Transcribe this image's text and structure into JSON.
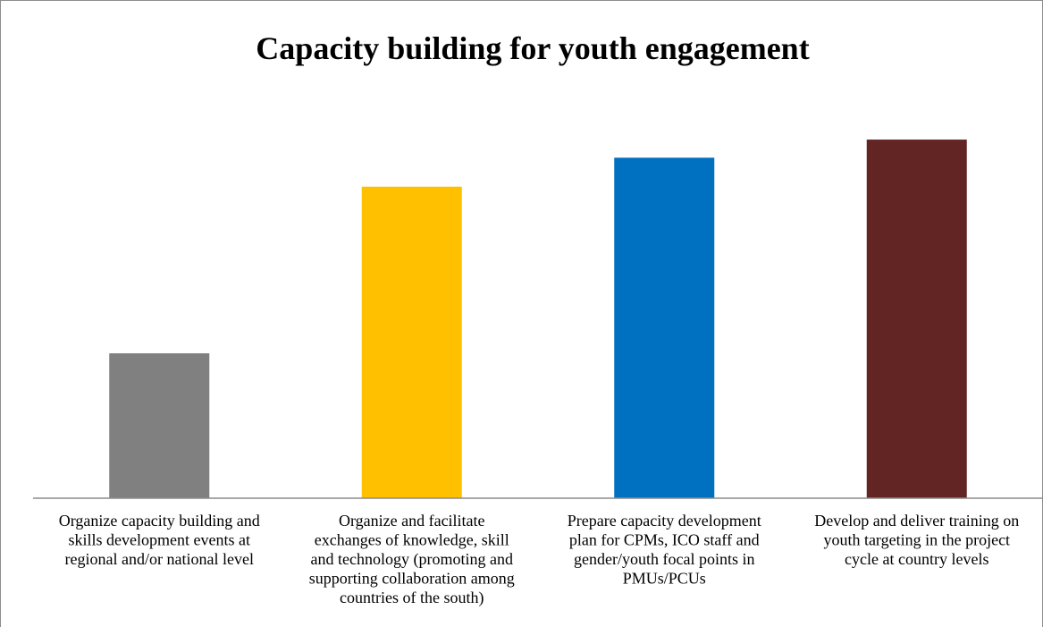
{
  "chart_data": {
    "type": "bar",
    "title": "Capacity building for youth engagement",
    "xlabel": "",
    "ylabel": "",
    "ylim": [
      0,
      100
    ],
    "grid": false,
    "legend": "none",
    "categories": [
      [
        "Organize capacity building and",
        "skills development events at",
        "regional and/or national level"
      ],
      [
        "Organize and facilitate",
        "exchanges of knowledge, skill",
        "and technology (promoting and",
        "supporting collaboration among",
        "countries of the south)"
      ],
      [
        "Prepare capacity development",
        "plan for CPMs, ICO staff and",
        "gender/youth focal points in",
        "PMUs/PCUs"
      ],
      [
        "Develop and deliver training on",
        "youth targeting in the project",
        "cycle at country levels"
      ]
    ],
    "values": [
      40,
      86,
      94,
      99
    ],
    "colors": [
      "#808080",
      "#ffc000",
      "#0070c0",
      "#632523"
    ]
  }
}
